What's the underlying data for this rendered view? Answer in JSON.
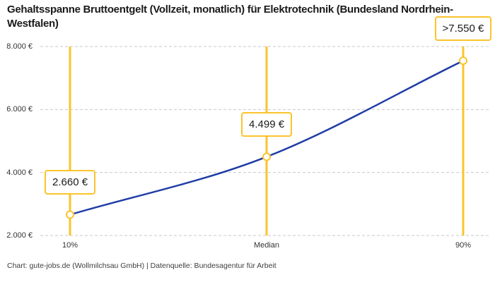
{
  "title": "Gehaltsspanne Bruttoentgelt (Vollzeit, monatlich) für Elektrotechnik (Bundesland Nordrhein-Westfalen)",
  "footer": "Chart: gute-jobs.de (Wollmilchsau GmbH) | Datenquelle: Bundesagentur für Arbeit",
  "chart_data": {
    "type": "line",
    "title": "Gehaltsspanne Bruttoentgelt (Vollzeit, monatlich) für Elektrotechnik (Bundesland Nordrhein-Westfalen)",
    "categories": [
      "10%",
      "Median",
      "90%"
    ],
    "values": [
      2660,
      4499,
      7550
    ],
    "point_labels": [
      "2.660 €",
      "4.499 €",
      ">7.550 €"
    ],
    "y_ticks": [
      {
        "value": 2000,
        "label": "2.000 €"
      },
      {
        "value": 4000,
        "label": "4.000 €"
      },
      {
        "value": 6000,
        "label": "6.000 €"
      },
      {
        "value": 8000,
        "label": "8.000 €"
      }
    ],
    "ylim": [
      2000,
      8000
    ],
    "xlabel": "",
    "ylabel": "",
    "grid": "horizontal-dashed",
    "legend": "none",
    "colors": {
      "line": "#1f3da6",
      "accent": "#fbc42d",
      "marker_fill": "#ffffff",
      "grid": "#c9c9c9",
      "tick_text": "#333333",
      "title_text": "#1a1a1a"
    }
  }
}
